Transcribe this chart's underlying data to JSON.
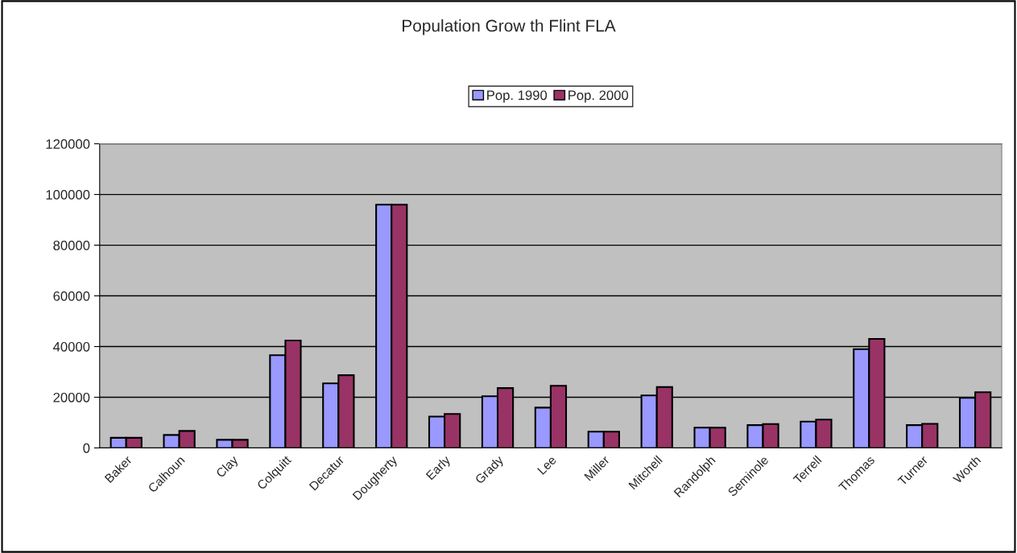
{
  "chart_data": {
    "type": "bar",
    "title": "Population Grow th Flint FLA",
    "categories": [
      "Baker",
      "Calhoun",
      "Clay",
      "Colquitt",
      "Decatur",
      "Dougherty",
      "Early",
      "Grady",
      "Lee",
      "Miller",
      "Mitchell",
      "Randolph",
      "Seminole",
      "Terrell",
      "Thomas",
      "Turner",
      "Worth"
    ],
    "series": [
      {
        "name": "Pop. 1990",
        "color": "#9999ff",
        "values": [
          4000,
          5100,
          3200,
          36600,
          25500,
          96000,
          12400,
          20400,
          15900,
          6400,
          20700,
          8000,
          9000,
          10400,
          39000,
          9000,
          19800
        ]
      },
      {
        "name": "Pop. 2000",
        "color": "#993366",
        "values": [
          4000,
          6700,
          3200,
          42400,
          28700,
          96000,
          13400,
          23600,
          24500,
          6400,
          24000,
          8000,
          9400,
          11200,
          43000,
          9500,
          22000
        ]
      }
    ],
    "ylim": [
      0,
      120000
    ],
    "yticks": [
      0,
      20000,
      40000,
      60000,
      80000,
      100000,
      120000
    ],
    "grid": "y",
    "legend": "top"
  }
}
